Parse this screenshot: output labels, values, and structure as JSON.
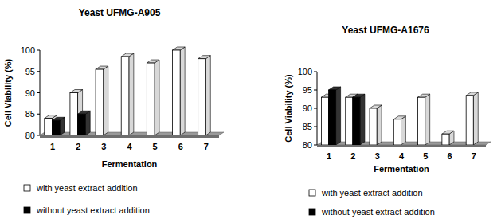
{
  "chart_data": [
    {
      "type": "bar",
      "title": "Yeast UFMG-A905",
      "x_label": "Fermentation",
      "y_label": "Cell Viability (%)",
      "categories": [
        "1",
        "2",
        "3",
        "4",
        "5",
        "6",
        "7"
      ],
      "series": [
        {
          "name": "with yeast extract addition",
          "color": "#ffffff",
          "values": [
            84,
            90,
            95.5,
            98.5,
            97,
            100,
            98
          ]
        },
        {
          "name": "without yeast extract addition",
          "color": "#000000",
          "values": [
            83.5,
            85,
            null,
            null,
            null,
            null,
            null
          ]
        }
      ],
      "ylim": [
        80,
        100
      ],
      "yticks": [
        80,
        85,
        90,
        95,
        100
      ],
      "legend": "bottom"
    },
    {
      "type": "bar",
      "title": "Yeast UFMG-A1676",
      "x_label": "Fermentation",
      "y_label": "Cell Viability (%)",
      "categories": [
        "1",
        "2",
        "3",
        "4",
        "5",
        "6",
        "7"
      ],
      "series": [
        {
          "name": "with yeast extract addition",
          "color": "#ffffff",
          "values": [
            93,
            93,
            90,
            87,
            93,
            83,
            93.5
          ]
        },
        {
          "name": "without yeast extract addition",
          "color": "#000000",
          "values": [
            95,
            93,
            null,
            null,
            null,
            null,
            null
          ]
        }
      ],
      "ylim": [
        80,
        100
      ],
      "yticks": [
        80,
        85,
        90,
        95,
        100
      ],
      "legend": "bottom"
    }
  ]
}
